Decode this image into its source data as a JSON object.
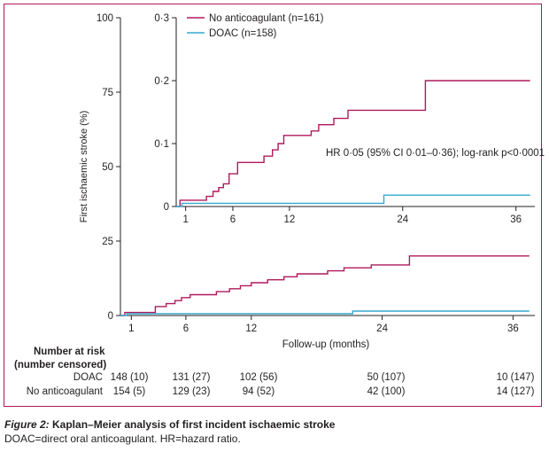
{
  "colors": {
    "frame": "#b0195d",
    "no_anticoag": "#b0195d",
    "doac": "#35a9cf",
    "axis": "#231f20"
  },
  "chart_data": [
    {
      "type": "line",
      "name": "main",
      "ylabel": "First ischaemic stroke (%)",
      "xlabel": "Follow-up (months)",
      "xlim": [
        0,
        38
      ],
      "ylim": [
        0,
        100
      ],
      "x_ticks": [
        1,
        6,
        12,
        24,
        36
      ],
      "y_ticks": [
        0,
        25,
        50,
        75,
        100
      ],
      "series": [
        {
          "name": "No anticoagulant (n=161)",
          "color": "#b0195d",
          "steps": [
            [
              0,
              0
            ],
            [
              0.4,
              1
            ],
            [
              3.2,
              3
            ],
            [
              4.2,
              4
            ],
            [
              5.0,
              5
            ],
            [
              5.6,
              6
            ],
            [
              6.4,
              7
            ],
            [
              8.8,
              8
            ],
            [
              10,
              9
            ],
            [
              11,
              10
            ],
            [
              12,
              11
            ],
            [
              13.5,
              12
            ],
            [
              15,
              13
            ],
            [
              16.2,
              14
            ],
            [
              19,
              15
            ],
            [
              20.5,
              16
            ],
            [
              23,
              17
            ],
            [
              26.5,
              20
            ],
            [
              31,
              20
            ],
            [
              37.5,
              20
            ]
          ]
        },
        {
          "name": "DOAC (n=158)",
          "color": "#35a9cf",
          "steps": [
            [
              0,
              0
            ],
            [
              0.6,
              0.6
            ],
            [
              21.2,
              0.6
            ],
            [
              21.3,
              1.5
            ],
            [
              37.5,
              1.5
            ]
          ]
        }
      ]
    },
    {
      "type": "line",
      "name": "inset",
      "xlim": [
        0,
        38
      ],
      "ylim": [
        0,
        0.3
      ],
      "x_ticks": [
        1,
        6,
        12,
        24,
        36
      ],
      "y_ticks": [
        0,
        0.1,
        0.2,
        0.3
      ],
      "annotation": "HR 0·05 (95% CI 0·01–0·36); log-rank p<0·0001",
      "legend": [
        {
          "label": "No anticoagulant (n=161)",
          "color": "#b0195d"
        },
        {
          "label": "DOAC (n=158)",
          "color": "#35a9cf"
        }
      ],
      "series": [
        {
          "name": "No anticoagulant (n=161)",
          "color": "#b0195d",
          "steps": [
            [
              0,
              0
            ],
            [
              0.4,
              0.01
            ],
            [
              3.2,
              0.016
            ],
            [
              3.9,
              0.024
            ],
            [
              4.5,
              0.03
            ],
            [
              5.0,
              0.036
            ],
            [
              5.6,
              0.052
            ],
            [
              6.5,
              0.07
            ],
            [
              8.3,
              0.07
            ],
            [
              9.3,
              0.08
            ],
            [
              10.2,
              0.09
            ],
            [
              10.8,
              0.1
            ],
            [
              11.4,
              0.113
            ],
            [
              13.2,
              0.113
            ],
            [
              14.3,
              0.12
            ],
            [
              15.1,
              0.13
            ],
            [
              16.7,
              0.14
            ],
            [
              18.2,
              0.153
            ],
            [
              20.9,
              0.153
            ],
            [
              26.4,
              0.2
            ],
            [
              30,
              0.2
            ],
            [
              37.5,
              0.2
            ]
          ]
        },
        {
          "name": "DOAC (n=158)",
          "color": "#35a9cf",
          "steps": [
            [
              0,
              0
            ],
            [
              0.6,
              0.005
            ],
            [
              21.9,
              0.005
            ],
            [
              22,
              0.018
            ],
            [
              37.5,
              0.018
            ]
          ]
        }
      ]
    }
  ],
  "risk_table": {
    "title_line1": "Number at risk",
    "title_line2": "(number censored)",
    "rows": [
      {
        "label": "DOAC",
        "values": [
          "148 (10)",
          "131 (27)",
          "102 (56)",
          "50 (107)",
          "10 (147)"
        ]
      },
      {
        "label": "No anticoagulant",
        "values": [
          "154 (5)",
          "129 (23)",
          "94 (52)",
          "42 (100)",
          "14 (127)"
        ]
      }
    ]
  },
  "caption": {
    "figure_label": "Figure 2:",
    "title": "Kaplan–Meier analysis of first incident ischaemic stroke",
    "note": "DOAC=direct oral anticoagulant. HR=hazard ratio."
  }
}
